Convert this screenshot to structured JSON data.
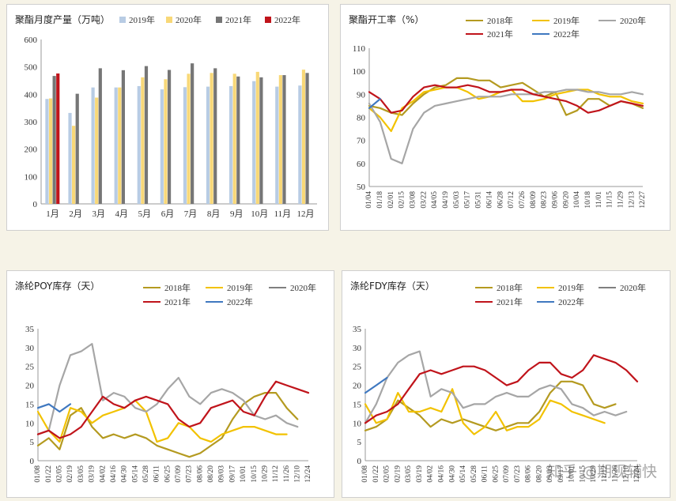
{
  "colors": {
    "y2018": "#b49a20",
    "y2019": "#f2c200",
    "y2020": "#a6a6a6",
    "y2021": "#c0141b",
    "y2022": "#3f78c0",
    "bar2019": "#b8cce4",
    "bar2020": "#f8d878",
    "bar2021": "#767676",
    "bar2022": "#c0141b"
  },
  "watermark": "知乎 @期现辅快",
  "chart_data": [
    {
      "type": "bar",
      "title": "聚酯月度产量（万吨）",
      "categories": [
        "1月",
        "2月",
        "3月",
        "4月",
        "5月",
        "6月",
        "7月",
        "8月",
        "9月",
        "10月",
        "11月",
        "12月"
      ],
      "ylim": [
        0,
        600
      ],
      "yticks": [
        "0",
        "100",
        "200",
        "300",
        "400",
        "500",
        "600"
      ],
      "legend_position": "top",
      "series": [
        {
          "name": "2019年",
          "color": "bar2019",
          "values": [
            383,
            332,
            425,
            425,
            430,
            418,
            426,
            428,
            430,
            448,
            428,
            432
          ]
        },
        {
          "name": "2020年",
          "color": "bar2020",
          "values": [
            385,
            285,
            388,
            425,
            462,
            455,
            475,
            478,
            475,
            482,
            470,
            490
          ]
        },
        {
          "name": "2021年",
          "color": "bar2021",
          "values": [
            467,
            402,
            495,
            488,
            503,
            489,
            513,
            495,
            465,
            462,
            470,
            478
          ]
        },
        {
          "name": "2022年",
          "color": "bar2022",
          "values": [
            476,
            null,
            null,
            null,
            null,
            null,
            null,
            null,
            null,
            null,
            null,
            null
          ]
        }
      ]
    },
    {
      "type": "line",
      "title": "聚酯开工率（%）",
      "x": [
        "01/04",
        "01/18",
        "02/01",
        "02/15",
        "03/08",
        "03/22",
        "04/05",
        "04/19",
        "05/03",
        "05/17",
        "05/31",
        "06/14",
        "06/28",
        "07/12",
        "07/26",
        "08/09",
        "08/23",
        "09/06",
        "09/20",
        "10/04",
        "10/18",
        "11/01",
        "11/15",
        "11/29",
        "12/13",
        "12/27"
      ],
      "ylim": [
        50,
        110
      ],
      "yticks": [
        "50",
        "60",
        "70",
        "80",
        "90",
        "100",
        "110"
      ],
      "legend_position": "top",
      "series": [
        {
          "name": "2018年",
          "color": "y2018",
          "values": [
            85,
            84,
            82,
            81,
            86,
            90,
            93,
            94,
            97,
            97,
            96,
            96,
            93,
            94,
            95,
            92,
            89,
            91,
            81,
            83,
            88,
            88,
            85,
            87,
            86,
            84
          ]
        },
        {
          "name": "2019年",
          "color": "y2019",
          "values": [
            84,
            80,
            74,
            84,
            87,
            91,
            92,
            93,
            93,
            91,
            88,
            89,
            91,
            92,
            87,
            87,
            88,
            90,
            91,
            92,
            92,
            90,
            89,
            89,
            87,
            86
          ]
        },
        {
          "name": "2020年",
          "color": "y2020",
          "values": [
            86,
            78,
            62,
            60,
            75,
            82,
            85,
            86,
            87,
            88,
            89,
            89,
            89,
            90,
            90,
            90,
            91,
            91,
            92,
            92,
            91,
            91,
            90,
            90,
            91,
            90
          ]
        },
        {
          "name": "2021年",
          "color": "y2021",
          "values": [
            91,
            88,
            82,
            83,
            89,
            93,
            94,
            93,
            93,
            94,
            93,
            91,
            91,
            92,
            92,
            90,
            89,
            88,
            87,
            85,
            82,
            83,
            85,
            87,
            86,
            85
          ]
        },
        {
          "name": "2022年",
          "color": "y2022",
          "values": [
            84,
            88,
            null,
            null,
            null,
            null,
            null,
            null,
            null,
            null,
            null,
            null,
            null,
            null,
            null,
            null,
            null,
            null,
            null,
            null,
            null,
            null,
            null,
            null,
            null,
            null
          ]
        }
      ]
    },
    {
      "type": "line",
      "title": "涤纶POY库存（天）",
      "x": [
        "01/08",
        "01/22",
        "02/05",
        "02/19",
        "03/05",
        "03/19",
        "04/02",
        "04/16",
        "04/30",
        "05/14",
        "05/28",
        "06/11",
        "06/25",
        "07/09",
        "07/23",
        "08/06",
        "08/20",
        "09/03",
        "09/17",
        "10/01",
        "10/15",
        "10/29",
        "11/12",
        "11/26",
        "12/10",
        "12/24"
      ],
      "ylim": [
        0,
        35
      ],
      "yticks": [
        "0",
        "5",
        "10",
        "15",
        "20",
        "25",
        "30",
        "35"
      ],
      "legend_position": "top",
      "series": [
        {
          "name": "2018年",
          "color": "y2018",
          "values": [
            4,
            6,
            3,
            12,
            14,
            9,
            6,
            7,
            6,
            7,
            6,
            4,
            3,
            2,
            1,
            2,
            4,
            6,
            11,
            15,
            17,
            18,
            18,
            14,
            11,
            null
          ]
        },
        {
          "name": "2019年",
          "color": "y2019",
          "values": [
            13,
            8,
            5,
            14,
            13,
            10,
            12,
            13,
            14,
            16,
            13,
            5,
            6,
            10,
            9,
            6,
            5,
            7,
            8,
            9,
            9,
            8,
            7,
            7,
            null,
            null
          ]
        },
        {
          "name": "2020年",
          "color": "y2020",
          "values": [
            7,
            8,
            20,
            28,
            29,
            31,
            16,
            18,
            17,
            14,
            13,
            15,
            19,
            22,
            17,
            15,
            18,
            19,
            18,
            16,
            12,
            11,
            12,
            10,
            9,
            null
          ]
        },
        {
          "name": "2021年",
          "color": "y2021",
          "values": [
            7,
            8,
            6,
            7,
            9,
            13,
            17,
            15,
            14,
            16,
            17,
            16,
            15,
            11,
            9,
            10,
            14,
            15,
            16,
            13,
            12,
            17,
            21,
            20,
            19,
            18
          ]
        },
        {
          "name": "2022年",
          "color": "y2022",
          "values": [
            14,
            15,
            13,
            15,
            null,
            null,
            null,
            null,
            null,
            null,
            null,
            null,
            null,
            null,
            null,
            null,
            null,
            null,
            null,
            null,
            null,
            null,
            null,
            null,
            null,
            null
          ]
        }
      ]
    },
    {
      "type": "line",
      "title": "涤纶FDY库存（天）",
      "x": [
        "01/08",
        "01/22",
        "02/05",
        "02/19",
        "03/05",
        "03/19",
        "04/02",
        "04/16",
        "04/30",
        "05/14",
        "05/28",
        "06/11",
        "06/25",
        "07/09",
        "07/23",
        "08/06",
        "08/20",
        "09/03",
        "09/17",
        "10/01",
        "10/15",
        "10/29",
        "11/12",
        "11/26",
        "12/10",
        "12/24"
      ],
      "ylim": [
        0,
        35
      ],
      "yticks": [
        "0",
        "5",
        "10",
        "15",
        "20",
        "25",
        "30",
        "35"
      ],
      "legend_position": "top",
      "series": [
        {
          "name": "2018年",
          "color": "y2018",
          "values": [
            8,
            9,
            11,
            16,
            14,
            12,
            9,
            11,
            10,
            11,
            10,
            9,
            8,
            9,
            10,
            10,
            13,
            18,
            21,
            21,
            20,
            15,
            14,
            15,
            null,
            null
          ]
        },
        {
          "name": "2019年",
          "color": "y2019",
          "values": [
            15,
            10,
            11,
            18,
            13,
            13,
            14,
            13,
            19,
            10,
            7,
            9,
            13,
            8,
            9,
            9,
            11,
            16,
            15,
            13,
            12,
            11,
            10,
            null,
            null,
            null
          ]
        },
        {
          "name": "2020年",
          "color": "y2020",
          "values": [
            10,
            15,
            22,
            26,
            28,
            29,
            17,
            19,
            18,
            14,
            15,
            15,
            17,
            18,
            17,
            17,
            19,
            20,
            19,
            15,
            14,
            12,
            13,
            12,
            13,
            null
          ]
        },
        {
          "name": "2021年",
          "color": "y2021",
          "values": [
            10,
            12,
            13,
            15,
            19,
            23,
            24,
            23,
            24,
            25,
            25,
            24,
            22,
            20,
            21,
            24,
            26,
            26,
            23,
            22,
            24,
            28,
            27,
            26,
            24,
            21
          ]
        },
        {
          "name": "2022年",
          "color": "y2022",
          "values": [
            18,
            20,
            22,
            null,
            null,
            null,
            null,
            null,
            null,
            null,
            null,
            null,
            null,
            null,
            null,
            null,
            null,
            null,
            null,
            null,
            null,
            null,
            null,
            null,
            null,
            null
          ]
        }
      ]
    }
  ]
}
